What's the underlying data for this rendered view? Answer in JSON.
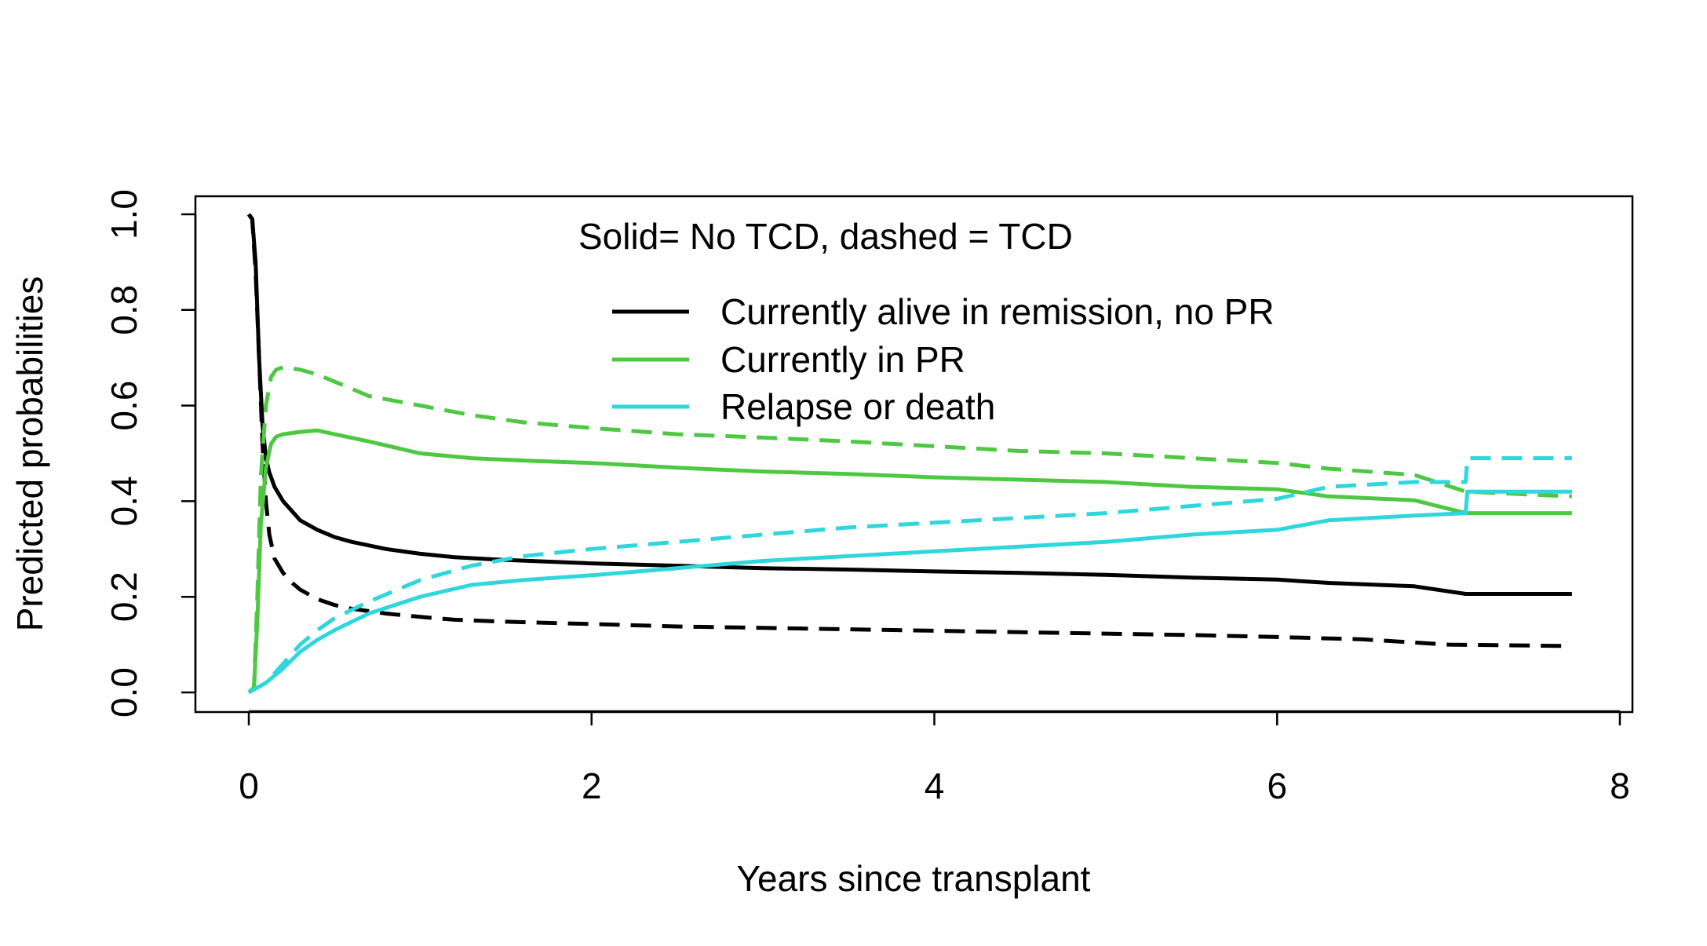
{
  "chart_data": {
    "type": "line",
    "title": "",
    "xlabel": "Years since transplant",
    "ylabel": "Predicted probabilities",
    "xlim": [
      0,
      8
    ],
    "ylim": [
      0,
      1
    ],
    "x_ticks": [
      0,
      2,
      4,
      6,
      8
    ],
    "x_tick_labels": [
      "0",
      "2",
      "4",
      "6",
      "8"
    ],
    "y_ticks": [
      0,
      0.2,
      0.4,
      0.6,
      0.8,
      1.0
    ],
    "y_tick_labels": [
      "0.0",
      "0.2",
      "0.4",
      "0.6",
      "0.8",
      "1.0"
    ],
    "grid": false,
    "legend": {
      "position": "top-right",
      "header": "Solid= No TCD, dashed = TCD",
      "entries": [
        {
          "label": "Currently alive in remission, no PR",
          "color": "#000000"
        },
        {
          "label": "Currently in PR",
          "color": "#4EC842"
        },
        {
          "label": "Relapse or death",
          "color": "#2FD6DC"
        }
      ]
    },
    "series": [
      {
        "state": "Currently alive in remission, no PR",
        "group": "No TCD",
        "color": "#000000",
        "dash": "solid",
        "x": [
          0,
          0.02,
          0.04,
          0.06,
          0.08,
          0.1,
          0.12,
          0.15,
          0.2,
          0.25,
          0.3,
          0.4,
          0.5,
          0.6,
          0.8,
          1.0,
          1.2,
          1.5,
          2.0,
          2.5,
          3.0,
          3.5,
          4.0,
          4.5,
          5.0,
          5.5,
          6.0,
          6.3,
          6.8,
          7.1,
          7.72
        ],
        "y": [
          1.0,
          0.99,
          0.9,
          0.7,
          0.56,
          0.49,
          0.46,
          0.43,
          0.4,
          0.38,
          0.36,
          0.34,
          0.325,
          0.315,
          0.3,
          0.29,
          0.283,
          0.277,
          0.27,
          0.265,
          0.26,
          0.257,
          0.253,
          0.25,
          0.246,
          0.24,
          0.236,
          0.229,
          0.222,
          0.206,
          0.206
        ]
      },
      {
        "state": "Currently alive in remission, no PR",
        "group": "TCD",
        "color": "#000000",
        "dash": "dashed",
        "x": [
          0,
          0.02,
          0.04,
          0.06,
          0.08,
          0.1,
          0.12,
          0.15,
          0.2,
          0.25,
          0.3,
          0.4,
          0.5,
          0.6,
          0.8,
          1.0,
          1.2,
          1.5,
          2.0,
          2.5,
          3.0,
          3.5,
          4.0,
          4.5,
          5.0,
          5.5,
          6.0,
          6.5,
          7.0,
          7.72
        ],
        "y": [
          1.0,
          0.99,
          0.88,
          0.7,
          0.52,
          0.4,
          0.33,
          0.28,
          0.25,
          0.23,
          0.215,
          0.195,
          0.183,
          0.175,
          0.165,
          0.158,
          0.152,
          0.148,
          0.143,
          0.138,
          0.135,
          0.132,
          0.129,
          0.126,
          0.123,
          0.12,
          0.116,
          0.111,
          0.1,
          0.097
        ]
      },
      {
        "state": "Currently in PR",
        "group": "No TCD",
        "color": "#4EC842",
        "dash": "solid",
        "x": [
          0,
          0.03,
          0.05,
          0.07,
          0.1,
          0.13,
          0.16,
          0.2,
          0.3,
          0.4,
          0.5,
          0.7,
          1.0,
          1.3,
          1.6,
          2.0,
          2.5,
          3.0,
          3.5,
          4.0,
          4.5,
          5.0,
          5.5,
          6.0,
          6.3,
          6.8,
          7.1,
          7.72
        ],
        "y": [
          0,
          0.01,
          0.15,
          0.35,
          0.47,
          0.52,
          0.535,
          0.54,
          0.545,
          0.548,
          0.54,
          0.525,
          0.5,
          0.49,
          0.485,
          0.48,
          0.47,
          0.462,
          0.457,
          0.45,
          0.445,
          0.44,
          0.43,
          0.425,
          0.41,
          0.402,
          0.375,
          0.375
        ]
      },
      {
        "state": "Currently in PR",
        "group": "TCD",
        "color": "#4EC842",
        "dash": "dashed",
        "x": [
          0,
          0.03,
          0.05,
          0.07,
          0.1,
          0.13,
          0.16,
          0.2,
          0.3,
          0.4,
          0.5,
          0.7,
          1.0,
          1.3,
          1.6,
          2.0,
          2.5,
          3.0,
          3.5,
          4.0,
          4.5,
          5.0,
          5.5,
          6.0,
          6.3,
          6.8,
          7.1,
          7.72
        ],
        "y": [
          0,
          0.01,
          0.2,
          0.45,
          0.6,
          0.66,
          0.675,
          0.68,
          0.675,
          0.665,
          0.65,
          0.62,
          0.6,
          0.58,
          0.565,
          0.553,
          0.54,
          0.533,
          0.525,
          0.515,
          0.505,
          0.5,
          0.49,
          0.48,
          0.468,
          0.455,
          0.42,
          0.41
        ]
      },
      {
        "state": "Relapse or death",
        "group": "No TCD",
        "color": "#2FD6DC",
        "dash": "solid",
        "x": [
          0,
          0.1,
          0.2,
          0.3,
          0.4,
          0.5,
          0.7,
          1.0,
          1.3,
          1.6,
          2.0,
          2.5,
          3.0,
          3.5,
          4.0,
          4.5,
          5.0,
          5.5,
          6.0,
          6.3,
          6.8,
          7.1,
          7.11,
          7.72
        ],
        "y": [
          0,
          0.02,
          0.05,
          0.085,
          0.11,
          0.13,
          0.165,
          0.2,
          0.225,
          0.235,
          0.245,
          0.26,
          0.275,
          0.285,
          0.295,
          0.305,
          0.315,
          0.33,
          0.34,
          0.36,
          0.37,
          0.375,
          0.42,
          0.42
        ]
      },
      {
        "state": "Relapse or death",
        "group": "TCD",
        "color": "#2FD6DC",
        "dash": "dashed",
        "x": [
          0,
          0.1,
          0.2,
          0.3,
          0.4,
          0.5,
          0.7,
          1.0,
          1.3,
          1.6,
          2.0,
          2.5,
          3.0,
          3.5,
          4.0,
          4.5,
          5.0,
          5.5,
          6.0,
          6.3,
          6.8,
          7.1,
          7.11,
          7.72
        ],
        "y": [
          0,
          0.02,
          0.06,
          0.1,
          0.13,
          0.155,
          0.19,
          0.235,
          0.265,
          0.285,
          0.3,
          0.315,
          0.33,
          0.345,
          0.355,
          0.365,
          0.375,
          0.39,
          0.405,
          0.43,
          0.44,
          0.44,
          0.49,
          0.49
        ]
      }
    ]
  }
}
